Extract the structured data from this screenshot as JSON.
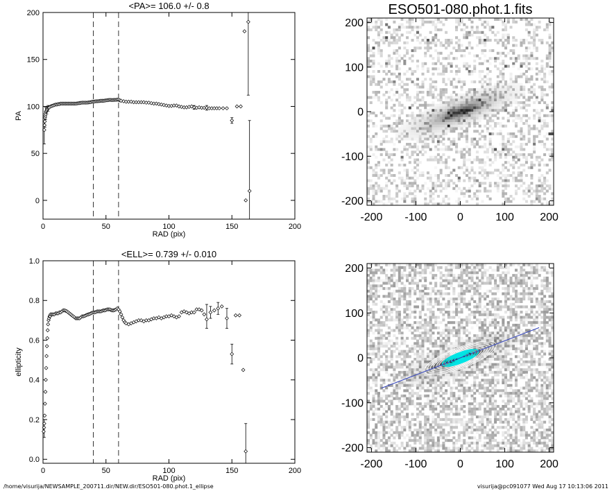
{
  "footer": {
    "path": "/home/visurija/NEWSAMPLE_200711.dir/NEW.dir/ESO501-080.phot.1_ellipse",
    "stamp": "visurija@pc091077  Wed Aug 17 10:13:06 2011"
  },
  "colors": {
    "axis": "#000000",
    "contour": "#ffffff",
    "inner_contour": "#00e5e5",
    "pa_line": "#3344bb"
  },
  "chart_data": [
    {
      "id": "pa",
      "type": "scatter",
      "title": "<PA>= 106.0 +/-   0.8",
      "xlabel": "RAD (pix)",
      "ylabel": "PA",
      "xlim": [
        0,
        200
      ],
      "ylim": [
        -20,
        200
      ],
      "xticks": [
        "0",
        "50",
        "100",
        "150",
        "200"
      ],
      "yticks": [
        "0",
        "50",
        "100",
        "150",
        "200"
      ],
      "xtick_values": [
        0,
        50,
        100,
        150,
        200
      ],
      "ytick_values": [
        0,
        50,
        100,
        150,
        200
      ],
      "vlines": [
        40,
        60
      ],
      "points": [
        [
          1,
          75
        ],
        [
          1.2,
          80
        ],
        [
          1.4,
          84
        ],
        [
          1.6,
          88
        ],
        [
          1.8,
          90
        ],
        [
          2,
          92
        ],
        [
          2.3,
          94
        ],
        [
          2.6,
          95
        ],
        [
          3,
          96
        ],
        [
          3.5,
          97
        ],
        [
          4,
          98
        ],
        [
          4.5,
          98.5
        ],
        [
          5,
          99
        ],
        [
          6,
          100
        ],
        [
          7,
          100.5
        ],
        [
          8,
          101
        ],
        [
          9,
          101.5
        ],
        [
          10,
          102
        ],
        [
          11,
          102
        ],
        [
          12,
          102.5
        ],
        [
          13,
          102.5
        ],
        [
          14,
          103
        ],
        [
          15,
          103
        ],
        [
          16,
          103
        ],
        [
          17,
          103
        ],
        [
          18,
          103
        ],
        [
          19,
          103
        ],
        [
          20,
          103
        ],
        [
          21,
          103
        ],
        [
          22,
          103
        ],
        [
          23,
          103
        ],
        [
          24,
          103
        ],
        [
          25,
          103
        ],
        [
          26,
          103
        ],
        [
          27,
          103.2
        ],
        [
          28,
          103.4
        ],
        [
          29,
          103.6
        ],
        [
          30,
          103.8
        ],
        [
          31,
          104
        ],
        [
          32,
          104
        ],
        [
          33,
          104
        ],
        [
          34,
          104
        ],
        [
          35,
          104
        ],
        [
          36,
          104.2
        ],
        [
          37,
          104.4
        ],
        [
          38,
          104.6
        ],
        [
          39,
          105
        ],
        [
          40,
          105
        ],
        [
          41,
          105.2
        ],
        [
          42,
          105.5
        ],
        [
          43,
          105.5
        ],
        [
          44,
          105.6
        ],
        [
          45,
          105.8
        ],
        [
          46,
          106
        ],
        [
          47,
          106
        ],
        [
          48,
          106
        ],
        [
          49,
          106.2
        ],
        [
          50,
          106.4
        ],
        [
          51,
          106.6
        ],
        [
          52,
          106.8
        ],
        [
          53,
          107
        ],
        [
          54,
          106.9
        ],
        [
          55,
          106.8
        ],
        [
          56,
          106.9
        ],
        [
          57,
          107
        ],
        [
          58,
          107
        ],
        [
          59,
          107.2
        ],
        [
          60,
          107.1
        ],
        [
          61,
          106.5
        ],
        [
          62,
          106
        ],
        [
          64,
          105.5
        ],
        [
          66,
          105
        ],
        [
          68,
          105
        ],
        [
          70,
          105
        ],
        [
          72,
          104.5
        ],
        [
          74,
          104.5
        ],
        [
          76,
          104.5
        ],
        [
          78,
          104.5
        ],
        [
          80,
          104.5
        ],
        [
          82,
          104
        ],
        [
          84,
          104
        ],
        [
          86,
          103.5
        ],
        [
          88,
          103
        ],
        [
          90,
          103
        ],
        [
          92,
          102.5
        ],
        [
          94,
          102
        ],
        [
          96,
          101.5
        ],
        [
          98,
          101
        ],
        [
          100,
          100.5
        ],
        [
          102,
          100.5
        ],
        [
          104,
          101
        ],
        [
          106,
          101
        ],
        [
          108,
          100
        ],
        [
          110,
          99.5
        ],
        [
          112,
          99
        ],
        [
          114,
          99
        ],
        [
          116,
          99.5
        ],
        [
          118,
          100
        ],
        [
          120,
          99
        ],
        [
          122,
          98.5
        ],
        [
          124,
          99
        ],
        [
          126,
          98.5
        ],
        [
          128,
          98.5
        ],
        [
          130,
          98.5
        ],
        [
          132,
          98
        ],
        [
          134,
          98
        ],
        [
          136,
          98
        ],
        [
          138,
          98
        ],
        [
          140,
          98
        ],
        [
          143,
          98
        ],
        [
          146,
          98
        ],
        [
          150,
          85
        ],
        [
          154,
          100
        ],
        [
          157,
          100
        ],
        [
          160,
          180
        ],
        [
          161,
          0
        ],
        [
          163,
          190
        ],
        [
          164,
          10
        ]
      ],
      "errors": [
        [
          1,
          60,
          90
        ],
        [
          1.5,
          78,
          92
        ],
        [
          2,
          86,
          99
        ],
        [
          3,
          92,
          100
        ],
        [
          4,
          95,
          101
        ],
        [
          120,
          97,
          101
        ],
        [
          130,
          96,
          101
        ],
        [
          150,
          82,
          88
        ],
        [
          163,
          112,
          200
        ],
        [
          164,
          -20,
          85
        ]
      ]
    },
    {
      "id": "ell",
      "type": "scatter",
      "title": "<ELL>= 0.739 +/-  0.010",
      "xlabel": "RAD (pix)",
      "ylabel": "ellipticity",
      "xlim": [
        0,
        200
      ],
      "ylim": [
        -0.02,
        1.0
      ],
      "xticks": [
        "0",
        "50",
        "100",
        "150",
        "200"
      ],
      "yticks": [
        "0.0",
        "0.2",
        "0.4",
        "0.6",
        "0.8",
        "1.0"
      ],
      "xtick_values": [
        0,
        50,
        100,
        150,
        200
      ],
      "ytick_values": [
        0,
        0.2,
        0.4,
        0.6,
        0.8,
        1.0
      ],
      "vlines": [
        40,
        60
      ],
      "points": [
        [
          0.5,
          0.14
        ],
        [
          0.8,
          0.16
        ],
        [
          1,
          0.18
        ],
        [
          1.3,
          0.22
        ],
        [
          1.6,
          0.28
        ],
        [
          1.9,
          0.34
        ],
        [
          2.2,
          0.4
        ],
        [
          2.5,
          0.46
        ],
        [
          2.8,
          0.52
        ],
        [
          3.1,
          0.57
        ],
        [
          3.4,
          0.61
        ],
        [
          3.7,
          0.65
        ],
        [
          4,
          0.68
        ],
        [
          4.4,
          0.7
        ],
        [
          4.8,
          0.71
        ],
        [
          5.2,
          0.72
        ],
        [
          5.6,
          0.72
        ],
        [
          6,
          0.73
        ],
        [
          7,
          0.73
        ],
        [
          8,
          0.73
        ],
        [
          9,
          0.73
        ],
        [
          10,
          0.735
        ],
        [
          11,
          0.735
        ],
        [
          12,
          0.735
        ],
        [
          13,
          0.74
        ],
        [
          14,
          0.74
        ],
        [
          15,
          0.745
        ],
        [
          16,
          0.75
        ],
        [
          17,
          0.75
        ],
        [
          18,
          0.748
        ],
        [
          19,
          0.745
        ],
        [
          20,
          0.74
        ],
        [
          21,
          0.735
        ],
        [
          22,
          0.73
        ],
        [
          23,
          0.725
        ],
        [
          24,
          0.72
        ],
        [
          25,
          0.715
        ],
        [
          26,
          0.71
        ],
        [
          27,
          0.71
        ],
        [
          28,
          0.71
        ],
        [
          29,
          0.71
        ],
        [
          30,
          0.715
        ],
        [
          31,
          0.72
        ],
        [
          32,
          0.72
        ],
        [
          33,
          0.722
        ],
        [
          34,
          0.725
        ],
        [
          35,
          0.728
        ],
        [
          36,
          0.73
        ],
        [
          37,
          0.732
        ],
        [
          38,
          0.735
        ],
        [
          39,
          0.738
        ],
        [
          40,
          0.74
        ],
        [
          41,
          0.74
        ],
        [
          42,
          0.742
        ],
        [
          43,
          0.745
        ],
        [
          44,
          0.745
        ],
        [
          45,
          0.745
        ],
        [
          46,
          0.745
        ],
        [
          47,
          0.748
        ],
        [
          48,
          0.75
        ],
        [
          49,
          0.75
        ],
        [
          50,
          0.752
        ],
        [
          51,
          0.755
        ],
        [
          52,
          0.755
        ],
        [
          53,
          0.755
        ],
        [
          54,
          0.752
        ],
        [
          55,
          0.75
        ],
        [
          56,
          0.75
        ],
        [
          57,
          0.752
        ],
        [
          58,
          0.755
        ],
        [
          59,
          0.76
        ],
        [
          60,
          0.755
        ],
        [
          61,
          0.745
        ],
        [
          62,
          0.73
        ],
        [
          63,
          0.715
        ],
        [
          64,
          0.7
        ],
        [
          65,
          0.69
        ],
        [
          66,
          0.685
        ],
        [
          68,
          0.68
        ],
        [
          70,
          0.685
        ],
        [
          72,
          0.69
        ],
        [
          74,
          0.695
        ],
        [
          76,
          0.7
        ],
        [
          78,
          0.7
        ],
        [
          80,
          0.695
        ],
        [
          82,
          0.7
        ],
        [
          84,
          0.7
        ],
        [
          86,
          0.705
        ],
        [
          88,
          0.71
        ],
        [
          90,
          0.71
        ],
        [
          92,
          0.715
        ],
        [
          94,
          0.71
        ],
        [
          96,
          0.715
        ],
        [
          98,
          0.72
        ],
        [
          100,
          0.72
        ],
        [
          102,
          0.725
        ],
        [
          104,
          0.72
        ],
        [
          106,
          0.715
        ],
        [
          108,
          0.72
        ],
        [
          110,
          0.74
        ],
        [
          112,
          0.745
        ],
        [
          114,
          0.74
        ],
        [
          116,
          0.735
        ],
        [
          118,
          0.74
        ],
        [
          120,
          0.74
        ],
        [
          122,
          0.755
        ],
        [
          124,
          0.755
        ],
        [
          126,
          0.75
        ],
        [
          128,
          0.73
        ],
        [
          130,
          0.705
        ],
        [
          133,
          0.74
        ],
        [
          136,
          0.75
        ],
        [
          139,
          0.76
        ],
        [
          142,
          0.77
        ],
        [
          146,
          0.71
        ],
        [
          150,
          0.53
        ],
        [
          153,
          0.725
        ],
        [
          156,
          0.725
        ],
        [
          159,
          0.45
        ],
        [
          161,
          0.04
        ]
      ],
      "errors": [
        [
          1,
          0.11,
          0.2
        ],
        [
          130,
          0.66,
          0.78
        ],
        [
          133,
          0.71,
          0.77
        ],
        [
          139,
          0.73,
          0.79
        ],
        [
          146,
          0.66,
          0.76
        ],
        [
          150,
          0.48,
          0.58
        ],
        [
          161,
          -0.02,
          0.18
        ]
      ]
    },
    {
      "id": "img-top",
      "type": "heatmap",
      "title": "ESO501-080.phot.1.fits",
      "xlim": [
        -210,
        210
      ],
      "ylim": [
        -210,
        210
      ],
      "xticks": [
        "-200",
        "-100",
        "0",
        "100",
        "200"
      ],
      "yticks": [
        "-200",
        "-100",
        "0",
        "100",
        "200"
      ],
      "xtick_values": [
        -200,
        -100,
        0,
        100,
        200
      ],
      "ytick_values": [
        -200,
        -100,
        0,
        100,
        200
      ],
      "galaxy": {
        "center": [
          0,
          0
        ],
        "pa_deg": 21,
        "major": 75,
        "minor": 18
      },
      "overlay": false
    },
    {
      "id": "img-bot",
      "type": "heatmap",
      "title": "",
      "xlim": [
        -210,
        210
      ],
      "ylim": [
        -210,
        210
      ],
      "xticks": [
        "-200",
        "-100",
        "0",
        "100",
        "200"
      ],
      "yticks": [
        "-200",
        "-100",
        "0",
        "100",
        "200"
      ],
      "xtick_values": [
        -200,
        -100,
        0,
        100,
        200
      ],
      "ytick_values": [
        -200,
        -100,
        0,
        100,
        200
      ],
      "galaxy": {
        "center": [
          0,
          0
        ],
        "pa_deg": 21,
        "major": 75,
        "minor": 18
      },
      "overlay": true
    }
  ]
}
